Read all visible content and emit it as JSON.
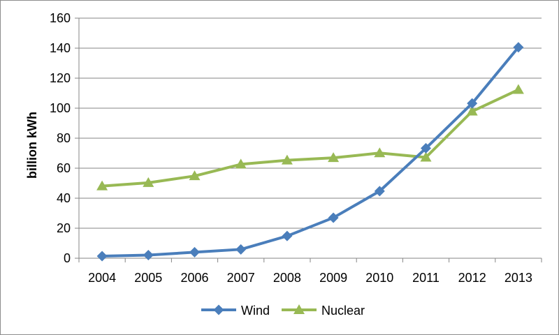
{
  "chart_data": {
    "type": "line",
    "title": "",
    "xlabel": "",
    "ylabel": "billion kWh",
    "ylim": [
      0,
      160
    ],
    "yticks": [
      0,
      20,
      40,
      60,
      80,
      100,
      120,
      140,
      160
    ],
    "categories": [
      "2004",
      "2005",
      "2006",
      "2007",
      "2008",
      "2009",
      "2010",
      "2011",
      "2012",
      "2013"
    ],
    "grid": "horizontal",
    "legend_position": "bottom",
    "series": [
      {
        "name": "Wind",
        "color": "#4a7ebb",
        "marker": "diamond",
        "values": [
          1.4,
          2.1,
          4.0,
          5.9,
          14.8,
          27.0,
          44.7,
          73.3,
          103.2,
          140.6
        ]
      },
      {
        "name": "Nuclear",
        "color": "#98b954",
        "marker": "triangle",
        "values": [
          48.1,
          50.3,
          54.8,
          62.6,
          65.3,
          66.9,
          70.1,
          67.2,
          97.9,
          112.3
        ]
      }
    ]
  }
}
